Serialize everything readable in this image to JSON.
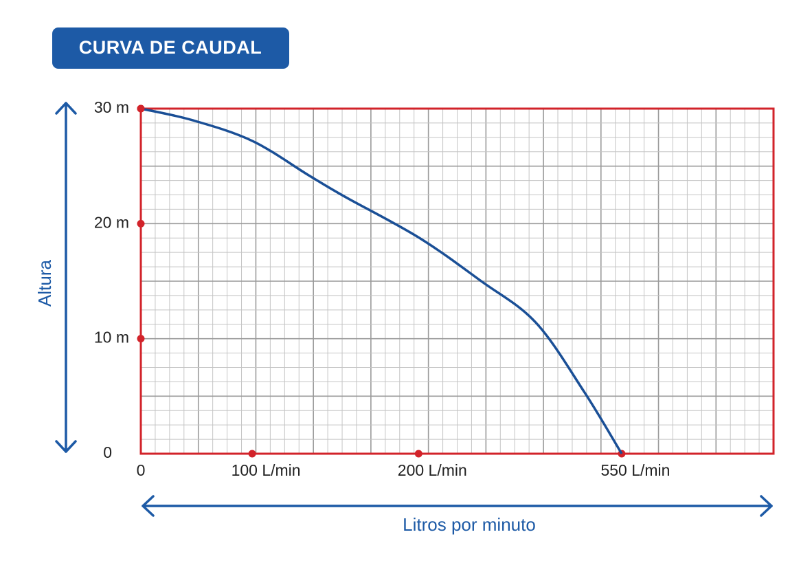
{
  "chart_data": {
    "type": "line",
    "title": "CURVA DE CAUDAL",
    "x_label": "Litros por minuto",
    "y_label": "Altura",
    "x": [
      0,
      46,
      100,
      134,
      155,
      200,
      308,
      402,
      485,
      550
    ],
    "series": [
      {
        "color": "#1a4f96",
        "values": [
          30,
          29,
          27.2,
          24.2,
          22.4,
          18.8,
          15,
          11.4,
          5.4,
          0
        ]
      }
    ],
    "xlim": [
      0,
      811
    ],
    "xticks": [
      0,
      {
        "value": 100,
        "label": "100 L/min"
      },
      {
        "value": 200,
        "label": "200 L/min"
      },
      {
        "value": 550,
        "label": "550 L/min"
      }
    ],
    "ylim": [
      0,
      30
    ],
    "yticks": [
      0,
      {
        "value": 10,
        "label": "10 m"
      },
      {
        "value": 20,
        "label": "20 m"
      },
      {
        "value": 30,
        "label": "30 m"
      }
    ],
    "tick_dot_color": "#d2232a",
    "frame_color": "#d2232a",
    "grid": true
  }
}
